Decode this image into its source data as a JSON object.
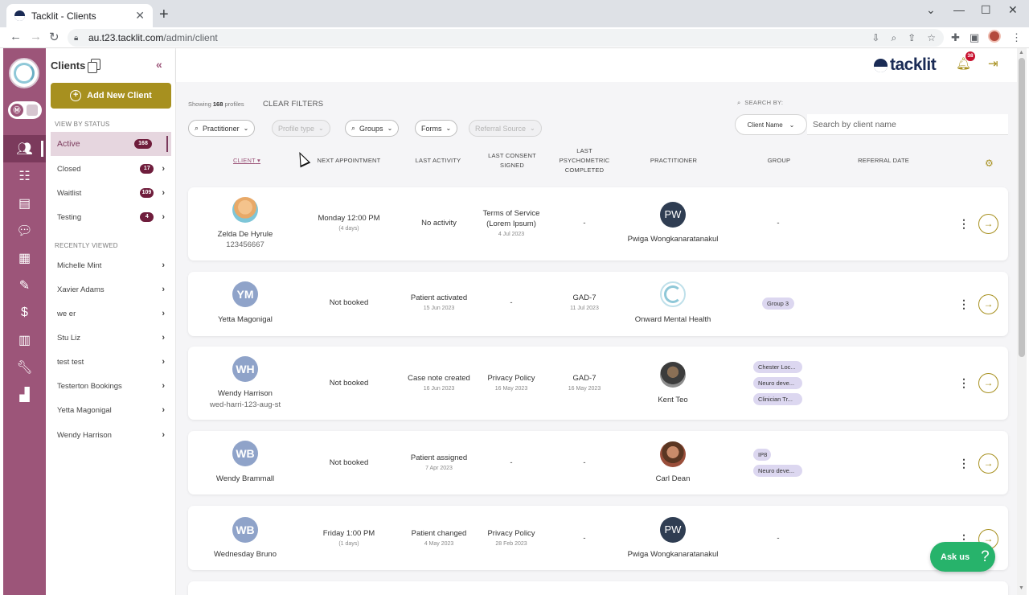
{
  "browser": {
    "tab_title": "Tacklit - Clients",
    "tab_close": "✕",
    "new_tab": "+",
    "url_host": "au.t23.tacklit.com",
    "url_path": "/admin/client"
  },
  "brand": {
    "name": "tacklit",
    "notifications_count": "38"
  },
  "sidebar": {
    "title": "Clients",
    "collapse_icon": "«",
    "add_button": "Add New Client",
    "view_by_status_label": "VIEW BY STATUS",
    "statuses": [
      {
        "label": "Active",
        "count": "168"
      },
      {
        "label": "Closed",
        "count": "17"
      },
      {
        "label": "Waitlist",
        "count": "109"
      },
      {
        "label": "Testing",
        "count": "4"
      }
    ],
    "recently_viewed_label": "RECENTLY VIEWED",
    "recent": [
      {
        "label": "Michelle Mint"
      },
      {
        "label": "Xavier Adams"
      },
      {
        "label": "we er"
      },
      {
        "label": "Stu Liz"
      },
      {
        "label": "test test"
      },
      {
        "label": "Testerton Bookings"
      },
      {
        "label": "Yetta Magonigal"
      },
      {
        "label": "Wendy Harrison"
      }
    ]
  },
  "toolbar": {
    "showing_prefix": "Showing",
    "showing_count": "168",
    "showing_suffix": "profiles",
    "clear_filters": "CLEAR FILTERS",
    "search_by_label": "SEARCH BY:",
    "search_type": "Client Name",
    "search_placeholder": "Search by client name",
    "filters": {
      "practitioner": "Practitioner",
      "profile_type": "Profile type",
      "groups": "Groups",
      "forms": "Forms",
      "referral_source": "Referral Source"
    }
  },
  "table": {
    "headers": {
      "client": "CLIENT",
      "next_appointment": "NEXT APPOINTMENT",
      "last_activity": "LAST ACTIVITY",
      "last_consent_1": "LAST CONSENT",
      "last_consent_2": "SIGNED",
      "last_psych_1": "LAST",
      "last_psych_2": "PSYCHOMETRIC",
      "last_psych_3": "COMPLETED",
      "practitioner": "PRACTITIONER",
      "group": "GROUP",
      "referral_date": "REFERRAL DATE"
    },
    "rows": [
      {
        "name": "Zelda De Hyrule",
        "id": "123456667",
        "next_appt": "Monday 12:00 PM",
        "next_appt_sub": "(4 days)",
        "activity": "No activity",
        "activity_sub": "",
        "consent": "Terms of Service (Lorem Ipsum)",
        "consent_sub": "4 Jul 2023",
        "psych": "-",
        "psych_sub": "",
        "practitioner_initials": "PW",
        "practitioner": "Pwiga Wongkanaratanakul",
        "group": "-"
      },
      {
        "initials": "YM",
        "name": "Yetta Magonigal",
        "next_appt": "Not booked",
        "activity": "Patient activated",
        "activity_sub": "15 Jun 2023",
        "consent": "-",
        "psych": "GAD-7",
        "psych_sub": "11 Jul 2023",
        "practitioner": "Onward Mental Health",
        "groups": [
          "Group 3"
        ]
      },
      {
        "initials": "WH",
        "name": "Wendy Harrison",
        "id": "wed-harri-123-aug-st",
        "next_appt": "Not booked",
        "activity": "Case note created",
        "activity_sub": "16 Jun 2023",
        "consent": "Privacy Policy",
        "consent_sub": "16 May 2023",
        "psych": "GAD-7",
        "psych_sub": "16 May 2023",
        "practitioner": "Kent Teo",
        "groups": [
          "Chester Loc...",
          "Neuro deve...",
          "Clinician Tr..."
        ]
      },
      {
        "initials": "WB",
        "name": "Wendy Brammall",
        "next_appt": "Not booked",
        "activity": "Patient assigned",
        "activity_sub": "7 Apr 2023",
        "consent": "-",
        "psych": "-",
        "practitioner": "Carl Dean",
        "groups": [
          "IP8",
          "Neuro deve..."
        ]
      },
      {
        "initials": "WB",
        "name": "Wednesday Bruno",
        "next_appt": "Friday 1:00 PM",
        "next_appt_sub": "(1 days)",
        "activity": "Patient changed",
        "activity_sub": "4 May 2023",
        "consent": "Privacy Policy",
        "consent_sub": "28 Feb 2023",
        "psych": "-",
        "practitioner_initials": "PW",
        "practitioner": "Pwiga Wongkanaratanakul",
        "group": "-"
      }
    ]
  },
  "chat": {
    "label": "Ask us",
    "icon": "?"
  },
  "icons": {
    "kebab": "⋮",
    "arrow": "→",
    "chevron": "›",
    "sort_caret": "▾"
  },
  "colors": {
    "rail": "#9c5579",
    "accent_gold": "#a7901f",
    "badge": "#6f1d3c",
    "brand_navy": "#1a2b55",
    "chat_green": "#27b36b",
    "group_tag": "#dcd7f0"
  }
}
